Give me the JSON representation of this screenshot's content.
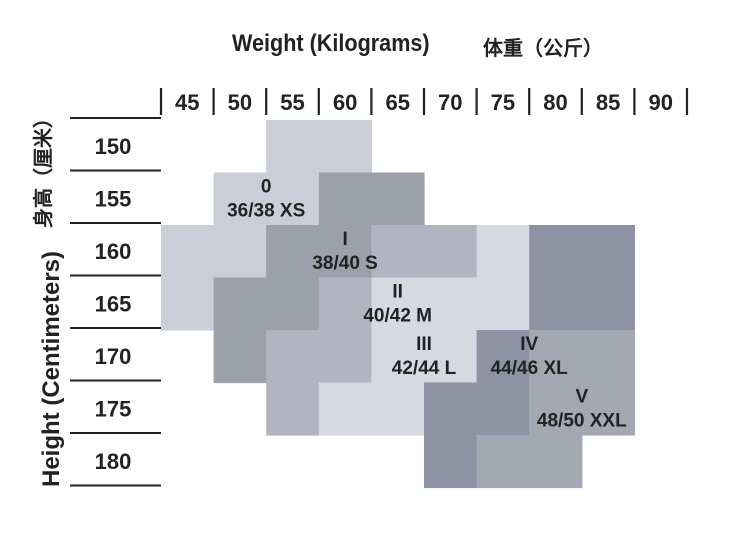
{
  "chart_data": {
    "type": "size-chart",
    "title": "Weight (Kilograms)",
    "title_cn": "体重（公斤）",
    "xlabel": "Weight (Kilograms)",
    "ylabel": "Height (Centimeters)",
    "ylabel_cn": "身高（厘米）",
    "x_ticks": [
      "45",
      "50",
      "55",
      "60",
      "65",
      "70",
      "75",
      "80",
      "85",
      "90"
    ],
    "y_ticks": [
      "150",
      "155",
      "160",
      "165",
      "170",
      "175",
      "180"
    ],
    "sizes": [
      {
        "roman": "0",
        "size": "36/38 XS"
      },
      {
        "roman": "I",
        "size": "38/40 S"
      },
      {
        "roman": "II",
        "size": "40/42 M"
      },
      {
        "roman": "III",
        "size": "42/44 L"
      },
      {
        "roman": "IV",
        "size": "44/46 XL"
      },
      {
        "roman": "V",
        "size": "48/50 XXL"
      }
    ],
    "regions": [
      {
        "size": "0",
        "shade": "#cbced9",
        "cells": [
          [
            55,
            150
          ],
          [
            60,
            150
          ],
          [
            50,
            155
          ],
          [
            55,
            155
          ],
          [
            45,
            160
          ],
          [
            50,
            160
          ],
          [
            45,
            165
          ]
        ]
      },
      {
        "size": "I",
        "shade": "#9ba0aa",
        "cells": [
          [
            60,
            155
          ],
          [
            65,
            155
          ],
          [
            55,
            160
          ],
          [
            60,
            160
          ],
          [
            50,
            165
          ],
          [
            55,
            165
          ],
          [
            50,
            170
          ]
        ]
      },
      {
        "size": "II",
        "shade": "#b2b5c1",
        "cells": [
          [
            65,
            160
          ],
          [
            70,
            160
          ],
          [
            60,
            165
          ],
          [
            55,
            170
          ],
          [
            60,
            170
          ],
          [
            55,
            175
          ]
        ]
      },
      {
        "size": "III",
        "shade": "#d6d9e2",
        "cells": [
          [
            75,
            160
          ],
          [
            65,
            165
          ],
          [
            70,
            165
          ],
          [
            75,
            165
          ],
          [
            65,
            170
          ],
          [
            70,
            170
          ],
          [
            60,
            175
          ],
          [
            65,
            175
          ]
        ]
      },
      {
        "size": "IV",
        "shade": "#8d93a4",
        "cells": [
          [
            80,
            160
          ],
          [
            85,
            160
          ],
          [
            80,
            165
          ],
          [
            85,
            165
          ],
          [
            75,
            170
          ],
          [
            70,
            175
          ],
          [
            75,
            175
          ],
          [
            70,
            180
          ]
        ]
      },
      {
        "size": "V",
        "shade": "#a4a8b3",
        "cells": [
          [
            80,
            170
          ],
          [
            85,
            170
          ],
          [
            80,
            175
          ],
          [
            85,
            175
          ],
          [
            75,
            180
          ],
          [
            80,
            180
          ]
        ]
      }
    ]
  }
}
